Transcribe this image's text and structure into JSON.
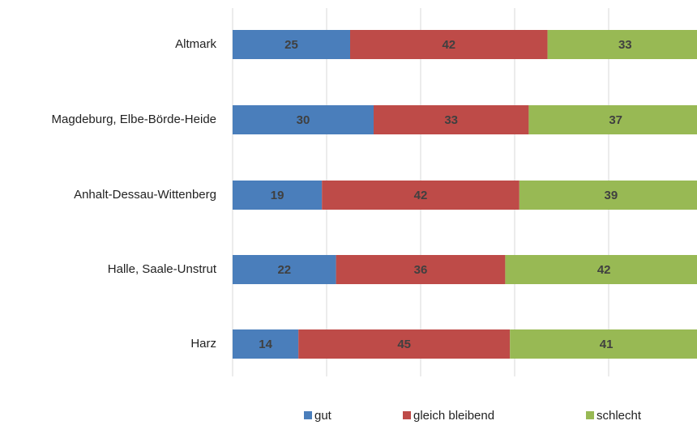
{
  "chart_data": {
    "type": "stacked_barh",
    "categories": [
      "Altmark",
      "Magdeburg, Elbe-Börde-Heide",
      "Anhalt-Dessau-Wittenberg",
      "Halle, Saale-Unstrut",
      "Harz"
    ],
    "series": [
      {
        "name": "gut",
        "color": "#4a7ebb",
        "values": [
          25,
          30,
          19,
          22,
          14
        ]
      },
      {
        "name": "gleich bleibend",
        "color": "#be4b48",
        "values": [
          42,
          33,
          42,
          36,
          45
        ]
      },
      {
        "name": "schlecht",
        "color": "#98b954",
        "values": [
          33,
          37,
          39,
          42,
          41
        ]
      }
    ],
    "xlim": [
      0,
      100
    ],
    "xticks": [
      0,
      20,
      40,
      60,
      80,
      100
    ],
    "grid": true,
    "legend": "bottom"
  }
}
